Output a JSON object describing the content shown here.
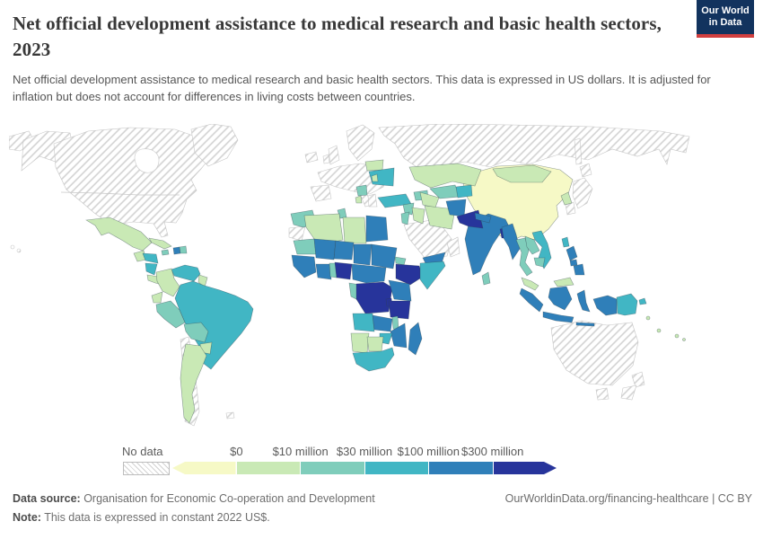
{
  "header": {
    "title": "Net official development assistance to medical research and basic health sectors, 2023",
    "subtitle": "Net official development assistance to medical research and basic health sectors. This data is expressed in US dollars. It is adjusted for inflation but does not account for differences in living costs between countries.",
    "logo": {
      "line1": "Our World",
      "line2": "in Data",
      "bg_color": "#12335e",
      "accent_color": "#d13f3f"
    }
  },
  "legend": {
    "no_data_label": "No data",
    "tick_labels": [
      "$0",
      "$10 million",
      "$30 million",
      "$100 million",
      "$300 million"
    ]
  },
  "footer": {
    "source_label": "Data source:",
    "source_text": " Organisation for Economic Co-operation and Development",
    "note_label": "Note:",
    "note_text": " This data is expressed in constant 2022 US$.",
    "right_text": "OurWorldinData.org/financing-healthcare | CC BY"
  },
  "chart_data": {
    "type": "choropleth-map",
    "title": "Net official development assistance to medical research and basic health sectors",
    "year": "2023",
    "unit": "constant 2022 US$",
    "legend_position": "bottom",
    "no_data_style": "diagonal-hatch",
    "bins": [
      {
        "id": "b0",
        "range": "below $0",
        "color": "#f6f9c6"
      },
      {
        "id": "b1",
        "range": "$0–$10 million",
        "color": "#c9e9b5"
      },
      {
        "id": "b2",
        "range": "$10–$30 million",
        "color": "#7fcdbb"
      },
      {
        "id": "b3",
        "range": "$30–$100 million",
        "color": "#41b6c4"
      },
      {
        "id": "b4",
        "range": "$100–$300 million",
        "color": "#2f7fb9"
      },
      {
        "id": "b5",
        "range": "above $300 million",
        "color": "#27349b"
      }
    ],
    "regions": {
      "russia-wrap": "no-data",
      "alaska": "no-data",
      "canada-usa": "no-data",
      "greenland": "no-data",
      "iceland": "no-data",
      "uk": "no-data",
      "ireland": "no-data",
      "scandinavia": "no-data",
      "europe-mainland": "no-data",
      "iberia": "no-data",
      "italy": "no-data",
      "greece": "no-data",
      "russia": "no-data",
      "saudi-arabia": "no-data",
      "oman-uae": "no-data",
      "japan-hokkaido": "no-data",
      "japan-honshu": "no-data",
      "sakhalin": "no-data",
      "south-korea": "no-data",
      "australia": "no-data",
      "tasmania": "no-data",
      "new-zealand-north": "no-data",
      "new-zealand-south": "no-data",
      "chile": "no-data",
      "uruguay": "no-data",
      "falklands": "no-data",
      "western-sahara": "no-data",
      "hawaii": "no-data",
      "china": "b0",
      "mexico": "b1",
      "guatemala": "b1",
      "costa-rica-panama": "b1",
      "cuba": "b1",
      "colombia": "b1",
      "ecuador": "b1",
      "guyana": "b1",
      "paraguay": "b1",
      "argentina": "b1",
      "belarus": "b1",
      "moldova": "b1",
      "kazakhstan": "b1",
      "turkmenistan": "b1",
      "iraq": "b1",
      "iran": "b1",
      "algeria": "b1",
      "libya": "b1",
      "namibia": "b1",
      "botswana": "b1",
      "mongolia": "b1",
      "north-korea": "b1",
      "malaysia-peninsular": "b1",
      "malaysia-borneo": "b1",
      "albania": "b1",
      "solomon-islands": "b1",
      "vanuatu": "b1",
      "fiji": "b1",
      "morocco": "b2",
      "tunisia": "b2",
      "mauritania": "b2",
      "peru": "b2",
      "bolivia": "b2",
      "jamaica": "b2",
      "dominican-republic": "b2",
      "syria": "b2",
      "jordan-lebanon": "b2",
      "uzbekistan": "b2",
      "caucasus": "b2",
      "thailand": "b2",
      "laos": "b2",
      "cambodia": "b2",
      "sri-lanka": "b2",
      "malawi": "b2",
      "togo-benin": "b2",
      "eritrea": "b2",
      "gabon-congo": "b2",
      "serbia-bosnia": "b2",
      "venezuela": "b3",
      "brazil": "b3",
      "honduras": "b3",
      "nicaragua": "b3",
      "ukraine": "b3",
      "turkey": "b3",
      "somalia": "b3",
      "angola": "b3",
      "zimbabwe": "b3",
      "south-africa": "b3",
      "vietnam": "b3",
      "papua-new-guinea": "b3",
      "new-britain": "b3",
      "kyrgyzstan-tajikistan": "b3",
      "taiwan": "b3",
      "haiti": "b4",
      "egypt": "b4",
      "mali": "b4",
      "niger": "b4",
      "chad": "b4",
      "sudan": "b4",
      "senegal-guinea": "b4",
      "ghana-ivory-coast": "b4",
      "cameroon-car": "b4",
      "uganda-kenya": "b4",
      "zambia": "b4",
      "mozambique": "b4",
      "madagascar": "b4",
      "yemen": "b4",
      "afghanistan": "b4",
      "india": "b4",
      "nepal": "b4",
      "myanmar": "b4",
      "philippines-luzon": "b4",
      "philippines-mindanao": "b4",
      "philippines-visayas": "b4",
      "sumatra": "b4",
      "java": "b4",
      "indonesian-borneo": "b4",
      "sulawesi": "b4",
      "west-papua": "b4",
      "lesser-sunda": "b4",
      "nigeria": "b5",
      "dr-congo": "b5",
      "ethiopia": "b5",
      "tanzania": "b5",
      "rwanda-burundi": "b5",
      "pakistan": "b5",
      "bangladesh": "b5"
    }
  }
}
